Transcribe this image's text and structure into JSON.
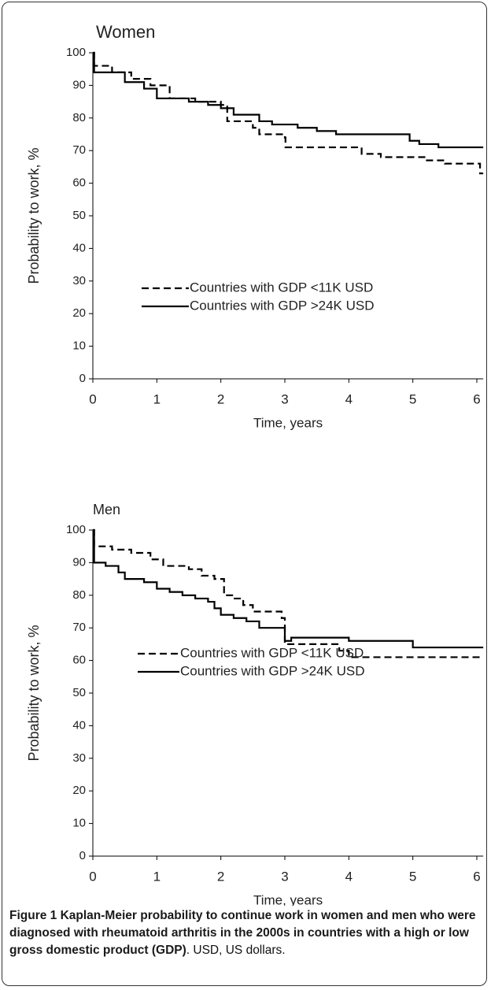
{
  "chart_data": [
    {
      "type": "step",
      "title": "Women",
      "x_label": "Time, years",
      "y_label": "Probability to work, %",
      "xlim": [
        0,
        6.1
      ],
      "ylim": [
        0,
        100
      ],
      "xticks": [
        0,
        1,
        2,
        3,
        4,
        5,
        6
      ],
      "yticks": [
        0,
        10,
        20,
        30,
        40,
        50,
        60,
        70,
        80,
        90,
        100
      ],
      "series": [
        {
          "name": "Countries with GDP <11K USD",
          "color": "#000000",
          "line_style": "dashed",
          "x": [
            0,
            0.02,
            0.3,
            0.6,
            0.9,
            1.2,
            1.6,
            2.0,
            2.1,
            2.5,
            2.6,
            3.0,
            3.01,
            4.2,
            4.5,
            5.2,
            5.5,
            6.05,
            6.1
          ],
          "values": [
            100,
            96,
            94,
            92,
            90,
            86,
            85,
            84,
            79,
            77,
            75,
            74,
            71,
            69,
            68,
            67,
            66,
            63,
            63
          ]
        },
        {
          "name": "Countries with GDP >24K USD",
          "color": "#000000",
          "line_style": "solid",
          "x": [
            0,
            0.02,
            0.5,
            0.8,
            1.0,
            1.5,
            1.8,
            2.0,
            2.2,
            2.6,
            2.8,
            3.2,
            3.5,
            3.8,
            4.95,
            5.1,
            5.4,
            6.1
          ],
          "values": [
            100,
            94,
            91,
            89,
            86,
            85,
            84,
            83,
            81,
            79,
            78,
            77,
            76,
            75,
            73,
            72,
            71,
            71
          ]
        }
      ]
    },
    {
      "type": "step",
      "title": "Men",
      "x_label": "Time, years",
      "y_label": "Probability to work, %",
      "xlim": [
        0,
        6.1
      ],
      "ylim": [
        0,
        100
      ],
      "xticks": [
        0,
        1,
        2,
        3,
        4,
        5,
        6
      ],
      "yticks": [
        0,
        10,
        20,
        30,
        40,
        50,
        60,
        70,
        80,
        90,
        100
      ],
      "series": [
        {
          "name": "Countries with GDP <11K USD",
          "color": "#000000",
          "line_style": "dashed",
          "x": [
            0,
            0.02,
            0.3,
            0.6,
            0.9,
            1.1,
            1.5,
            1.7,
            1.9,
            2.05,
            2.2,
            2.35,
            2.5,
            2.95,
            3.0,
            3.85,
            4.0,
            6.1
          ],
          "values": [
            100,
            95,
            94,
            93,
            91,
            89,
            88,
            86,
            85,
            80,
            79,
            77,
            75,
            73,
            65,
            63,
            61,
            61
          ]
        },
        {
          "name": "Countries with GDP >24K USD",
          "color": "#000000",
          "line_style": "solid",
          "x": [
            0,
            0.02,
            0.2,
            0.4,
            0.5,
            0.8,
            1.0,
            1.2,
            1.4,
            1.6,
            1.8,
            1.9,
            2.0,
            2.2,
            2.4,
            2.6,
            3.0,
            3.1,
            4.0,
            5.0,
            6.1
          ],
          "values": [
            100,
            90,
            89,
            87,
            85,
            84,
            82,
            81,
            80,
            79,
            78,
            76,
            74,
            73,
            72,
            70,
            66,
            67,
            66,
            64,
            64
          ]
        }
      ]
    }
  ],
  "caption": {
    "bold": "Figure 1 Kaplan-Meier probability to continue work in women and men who were diagnosed with rheumatoid arthritis in the 2000s in countries with a high or low gross domestic product (GDP)",
    "text": ". USD, US dollars."
  }
}
